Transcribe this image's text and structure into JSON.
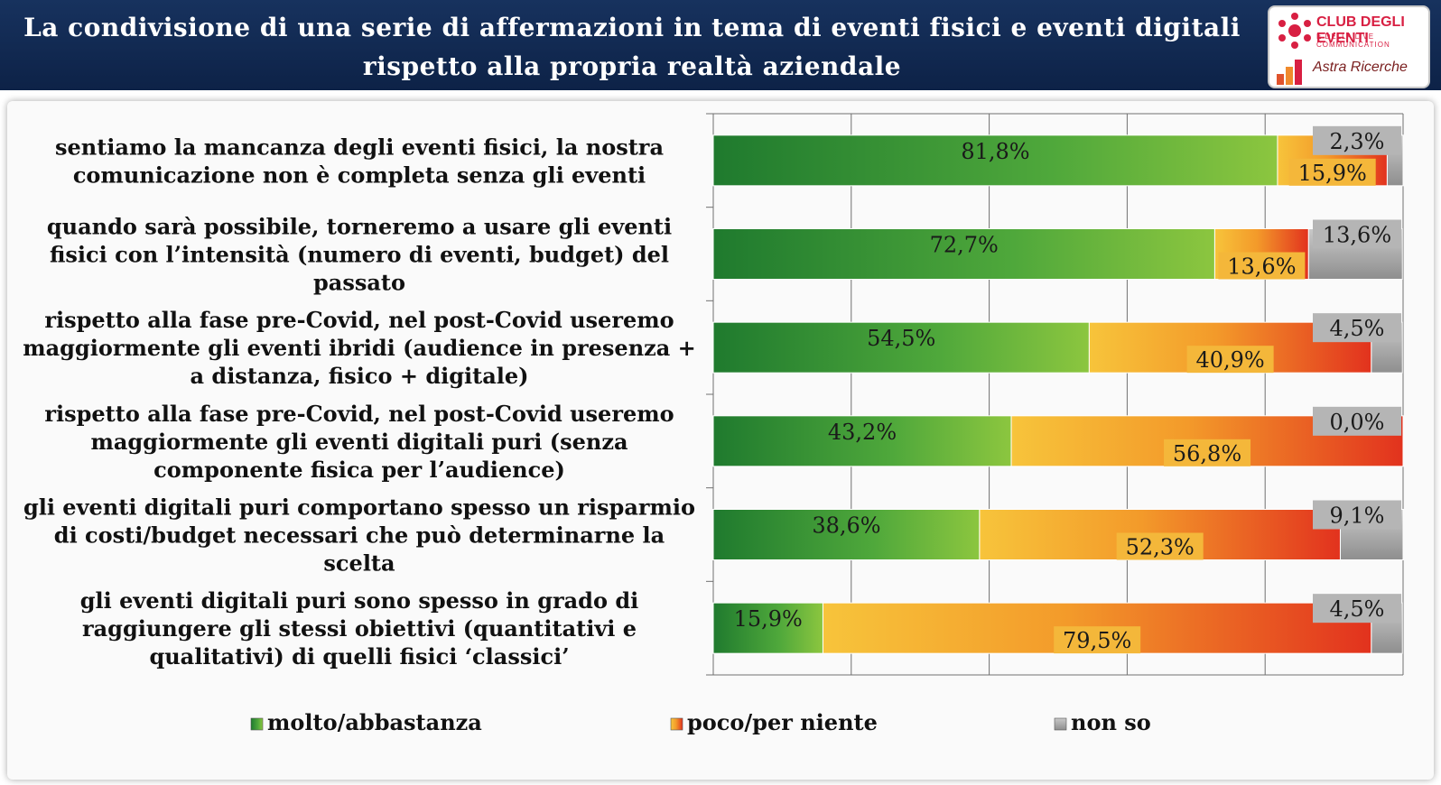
{
  "header": {
    "title_line1": "La condivisione di una serie di affermazioni in tema di eventi fisici e eventi digitali",
    "title_line2": "rispetto alla propria realtà aziendale",
    "logo_top": "CLUB DEGLI EVENTI",
    "logo_sub": "E DELLA LIVE COMMUNICATION",
    "logo_bottom": "Astra Ricerche"
  },
  "colors": {
    "header_bg": "#17325e",
    "green": "#3f9e34",
    "orange": "#f0a52a",
    "gray": "#a6a6a6"
  },
  "chart_data": {
    "type": "bar",
    "orientation": "horizontal",
    "stacked": true,
    "percent_stacked": true,
    "xlim": [
      0,
      100
    ],
    "grid": true,
    "legend_position": "bottom",
    "categories": [
      [
        "sentiamo la mancanza degli eventi fisici, la nostra",
        "comunicazione non è completa senza gli eventi"
      ],
      [
        "quando sarà possibile, torneremo a usare gli eventi",
        "fisici con l’intensità (numero di eventi, budget) del",
        "passato"
      ],
      [
        "rispetto alla fase pre-Covid, nel post-Covid useremo",
        "maggiormente gli eventi ibridi (audience in presenza +",
        "a distanza, fisico + digitale)"
      ],
      [
        "rispetto alla fase pre-Covid, nel post-Covid useremo",
        "maggiormente gli eventi digitali puri (senza",
        "componente fisica per l’audience)"
      ],
      [
        "gli eventi digitali puri comportano spesso un risparmio",
        "di costi/budget necessari che può determinarne la",
        "scelta"
      ],
      [
        "gli eventi digitali puri sono spesso in grado di",
        "raggiungere gli stessi obiettivi (quantitativi e",
        "qualitativi) di quelli fisici ‘classici’"
      ]
    ],
    "series": [
      {
        "name": "molto/abbastanza",
        "values": [
          81.8,
          72.7,
          54.5,
          43.2,
          38.6,
          15.9
        ],
        "labels": [
          "81,8%",
          "72,7%",
          "54,5%",
          "43,2%",
          "38,6%",
          "15,9%"
        ]
      },
      {
        "name": "poco/per niente",
        "values": [
          15.9,
          13.6,
          40.9,
          56.8,
          52.3,
          79.5
        ],
        "labels": [
          "15,9%",
          "13,6%",
          "40,9%",
          "56,8%",
          "52,3%",
          "79,5%"
        ]
      },
      {
        "name": "non so",
        "values": [
          2.3,
          13.6,
          4.5,
          0.0,
          9.1,
          4.5
        ],
        "labels": [
          "2,3%",
          "13,6%",
          "4,5%",
          "0,0%",
          "9,1%",
          "4,5%"
        ]
      }
    ]
  }
}
